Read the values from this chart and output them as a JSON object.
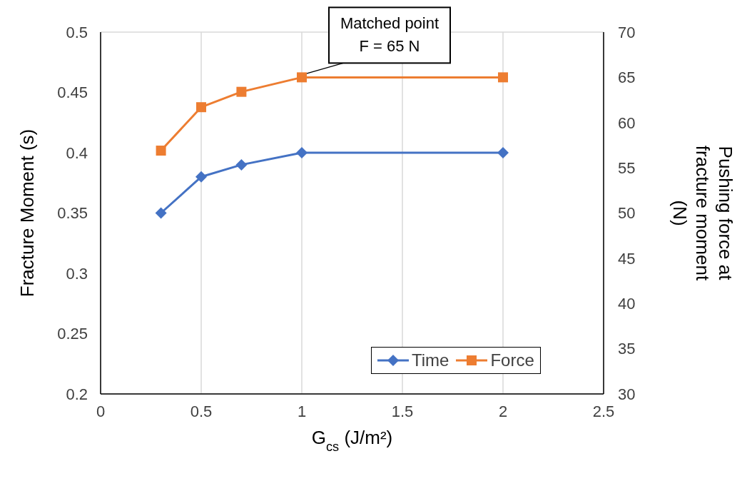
{
  "chart_data": {
    "type": "line",
    "xlabel": "G$_{cs}$ (J/m²)",
    "ylabel": "Fracture Moment (s)",
    "y2label": "Pushing force at fracture moment (N)",
    "x": [
      0.3,
      0.5,
      0.7,
      1,
      2
    ],
    "series": [
      {
        "name": "Time",
        "color": "#4472c4",
        "marker": "diamond",
        "values": [
          0.35,
          0.38,
          0.39,
          0.4,
          0.4
        ]
      },
      {
        "name": "Force",
        "color": "#ed7d31",
        "marker": "square",
        "axis": "y2",
        "values": [
          56.9,
          61.7,
          63.4,
          65,
          65
        ]
      }
    ],
    "xlim": [
      0,
      2.5
    ],
    "xticks": [
      0,
      0.5,
      1,
      1.5,
      2,
      2.5
    ],
    "ylim": [
      0.2,
      0.5
    ],
    "yticks": [
      0.2,
      0.25,
      0.3,
      0.35,
      0.4,
      0.45,
      0.5
    ],
    "y2lim": [
      30,
      70
    ],
    "y2ticks": [
      30,
      35,
      40,
      45,
      50,
      55,
      60,
      65,
      70
    ],
    "grid": true,
    "legend": "bottom right",
    "line_style": "solid",
    "annotations": [
      {
        "text": "Matched point\nF = 65 N",
        "x": 1,
        "y": 0.4625
      }
    ]
  }
}
